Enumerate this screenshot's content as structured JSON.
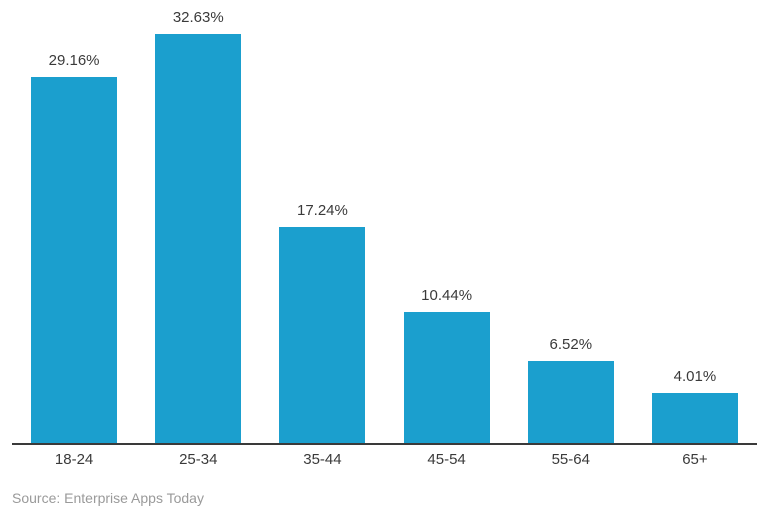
{
  "chart_data": {
    "type": "bar",
    "title": "",
    "xlabel": "",
    "ylabel": "",
    "categories": [
      "18-24",
      "25-34",
      "35-44",
      "45-54",
      "55-64",
      "65+"
    ],
    "values": [
      29.16,
      32.63,
      17.24,
      10.44,
      6.52,
      4.01
    ],
    "data_labels": [
      "29.16%",
      "32.63%",
      "17.24%",
      "10.44%",
      "6.52%",
      "4.01%"
    ],
    "ylim": [
      0,
      35.3
    ],
    "grid": "off",
    "legend": "none",
    "source": "Source: Enterprise Apps Today"
  },
  "colors": {
    "bar": "#1B9FCE",
    "label_text": "#3A3A3A",
    "tick_text": "#3A3A3A",
    "axis_line": "#3A3A3A",
    "source_text": "#9A9A9A",
    "background": "#FFFFFF"
  }
}
